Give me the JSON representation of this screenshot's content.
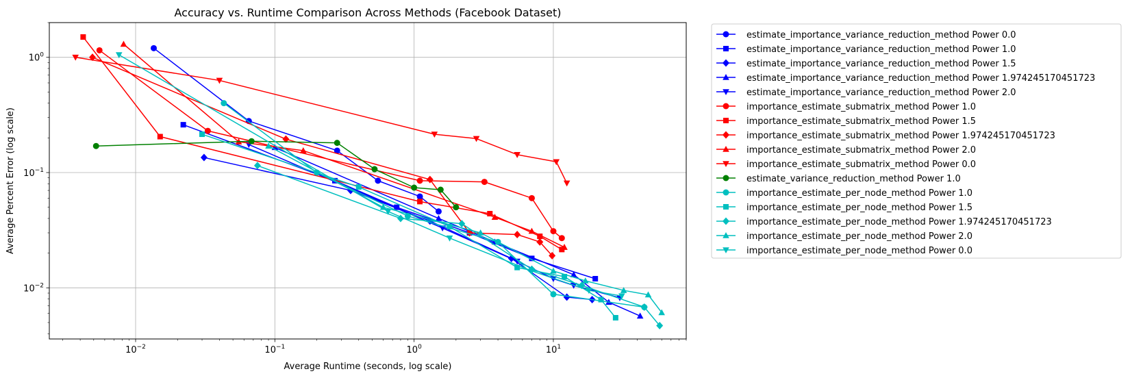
{
  "chart_data": {
    "type": "line",
    "title": "Accuracy vs. Runtime Comparison Across Methods (Facebook Dataset)",
    "xlabel": "Average Runtime (seconds, log scale)",
    "ylabel": "Average Percent Error (log scale)",
    "xscale": "log",
    "yscale": "log",
    "xlim": [
      0.0024,
      90
    ],
    "ylim": [
      0.0036,
      2.0
    ],
    "x_ticks": [
      {
        "value": 0.01,
        "base": "10",
        "exp": "−2"
      },
      {
        "value": 0.1,
        "base": "10",
        "exp": "−1"
      },
      {
        "value": 1,
        "base": "10",
        "exp": "0"
      },
      {
        "value": 10,
        "base": "10",
        "exp": "1"
      }
    ],
    "y_ticks": [
      {
        "value": 0.01,
        "base": "10",
        "exp": "−2"
      },
      {
        "value": 0.1,
        "base": "10",
        "exp": "−1"
      },
      {
        "value": 1,
        "base": "10",
        "exp": "0"
      }
    ],
    "grid": true,
    "legend_position": "outside right, top",
    "series": [
      {
        "name": "estimate_importance_variance_reduction_method Power 0.0",
        "color": "#0000ff",
        "marker": "circle",
        "x": [
          0.0135,
          0.065,
          0.28,
          0.55,
          1.1,
          1.5
        ],
        "y": [
          1.2,
          0.28,
          0.155,
          0.085,
          0.062,
          0.046
        ]
      },
      {
        "name": "estimate_importance_variance_reduction_method Power 1.0",
        "color": "#0000ff",
        "marker": "square",
        "x": [
          0.022,
          0.27,
          0.75,
          2.5,
          7.0,
          20.0
        ],
        "y": [
          0.26,
          0.085,
          0.05,
          0.03,
          0.018,
          0.012
        ]
      },
      {
        "name": "estimate_importance_variance_reduction_method Power 1.5",
        "color": "#0000ff",
        "marker": "diamond",
        "x": [
          0.031,
          0.35,
          1.3,
          5.0,
          12.5,
          19.0
        ],
        "y": [
          0.135,
          0.07,
          0.038,
          0.018,
          0.0083,
          0.0079
        ]
      },
      {
        "name": "estimate_importance_variance_reduction_method Power 1.974245170451723",
        "color": "#0000ff",
        "marker": "triangle-up",
        "x": [
          0.1,
          1.5,
          3.8,
          14.0,
          25.0,
          42.0
        ],
        "y": [
          0.165,
          0.04,
          0.025,
          0.013,
          0.0075,
          0.0057
        ]
      },
      {
        "name": "estimate_importance_variance_reduction_method Power 2.0",
        "color": "#0000ff",
        "marker": "triangle-down",
        "x": [
          0.065,
          1.6,
          5.5,
          10.0,
          14.0,
          30.0
        ],
        "y": [
          0.175,
          0.033,
          0.017,
          0.012,
          0.0105,
          0.0082
        ]
      },
      {
        "name": "importance_estimate_submatrix_method Power 1.0",
        "color": "#ff0000",
        "marker": "circle",
        "x": [
          0.0055,
          0.033,
          1.1,
          3.2,
          7.0,
          10.0,
          11.5
        ],
        "y": [
          1.15,
          0.23,
          0.085,
          0.083,
          0.06,
          0.031,
          0.027
        ]
      },
      {
        "name": "importance_estimate_submatrix_method Power 1.5",
        "color": "#ff0000",
        "marker": "square",
        "x": [
          0.0042,
          0.015,
          1.1,
          3.5,
          8.0,
          11.5
        ],
        "y": [
          1.5,
          0.205,
          0.056,
          0.044,
          0.028,
          0.0215
        ]
      },
      {
        "name": "importance_estimate_submatrix_method Power 1.974245170451723",
        "color": "#ff0000",
        "marker": "diamond",
        "x": [
          0.0049,
          0.12,
          1.3,
          2.5,
          5.5,
          8.0,
          9.8
        ],
        "y": [
          1.0,
          0.195,
          0.087,
          0.03,
          0.029,
          0.025,
          0.019
        ]
      },
      {
        "name": "importance_estimate_submatrix_method Power 2.0",
        "color": "#ff0000",
        "marker": "triangle-up",
        "x": [
          0.0082,
          0.055,
          0.16,
          3.8,
          7.0,
          12.0
        ],
        "y": [
          1.3,
          0.185,
          0.155,
          0.041,
          0.031,
          0.0225
        ]
      },
      {
        "name": "importance_estimate_submatrix_method Power 0.0",
        "color": "#ff0000",
        "marker": "triangle-down",
        "x": [
          0.0037,
          0.04,
          1.4,
          2.8,
          5.5,
          10.5,
          12.5
        ],
        "y": [
          1.0,
          0.63,
          0.215,
          0.197,
          0.143,
          0.124,
          0.081
        ]
      },
      {
        "name": "estimate_variance_reduction_method Power 1.0",
        "color": "#008000",
        "marker": "circle",
        "x": [
          0.0052,
          0.068,
          0.28,
          0.52,
          1.0,
          1.55,
          2.0
        ],
        "y": [
          0.17,
          0.187,
          0.181,
          0.107,
          0.074,
          0.071,
          0.05
        ]
      },
      {
        "name": "importance_estimate_per_node_method Power 1.0",
        "color": "#00bfbf",
        "marker": "circle",
        "x": [
          0.043,
          0.2,
          0.9,
          4.0,
          10.0,
          45.0
        ],
        "y": [
          0.4,
          0.1,
          0.042,
          0.025,
          0.0088,
          0.0068
        ]
      },
      {
        "name": "importance_estimate_per_node_method Power 1.5",
        "color": "#00bfbf",
        "marker": "square",
        "x": [
          0.03,
          0.4,
          1.8,
          5.5,
          12.0,
          22.0,
          28.0
        ],
        "y": [
          0.215,
          0.075,
          0.034,
          0.015,
          0.0125,
          0.0079,
          0.0055
        ]
      },
      {
        "name": "importance_estimate_per_node_method Power 1.974245170451723",
        "color": "#00bfbf",
        "marker": "diamond",
        "x": [
          0.075,
          0.8,
          2.2,
          7.0,
          16.0,
          45.0,
          58.0
        ],
        "y": [
          0.115,
          0.04,
          0.036,
          0.0145,
          0.0105,
          0.0068,
          0.0047
        ]
      },
      {
        "name": "importance_estimate_per_node_method Power 2.0",
        "color": "#00bfbf",
        "marker": "triangle-up",
        "x": [
          0.09,
          0.6,
          3.0,
          10.0,
          17.0,
          32.0,
          48.0,
          60.0
        ],
        "y": [
          0.17,
          0.05,
          0.03,
          0.014,
          0.0115,
          0.0095,
          0.0087,
          0.0061
        ]
      },
      {
        "name": "importance_estimate_per_node_method Power 0.0",
        "color": "#00bfbf",
        "marker": "triangle-down",
        "x": [
          0.0076,
          0.65,
          1.8,
          7.0,
          18.0,
          31.0
        ],
        "y": [
          1.05,
          0.046,
          0.027,
          0.014,
          0.0095,
          0.0085
        ]
      }
    ]
  }
}
